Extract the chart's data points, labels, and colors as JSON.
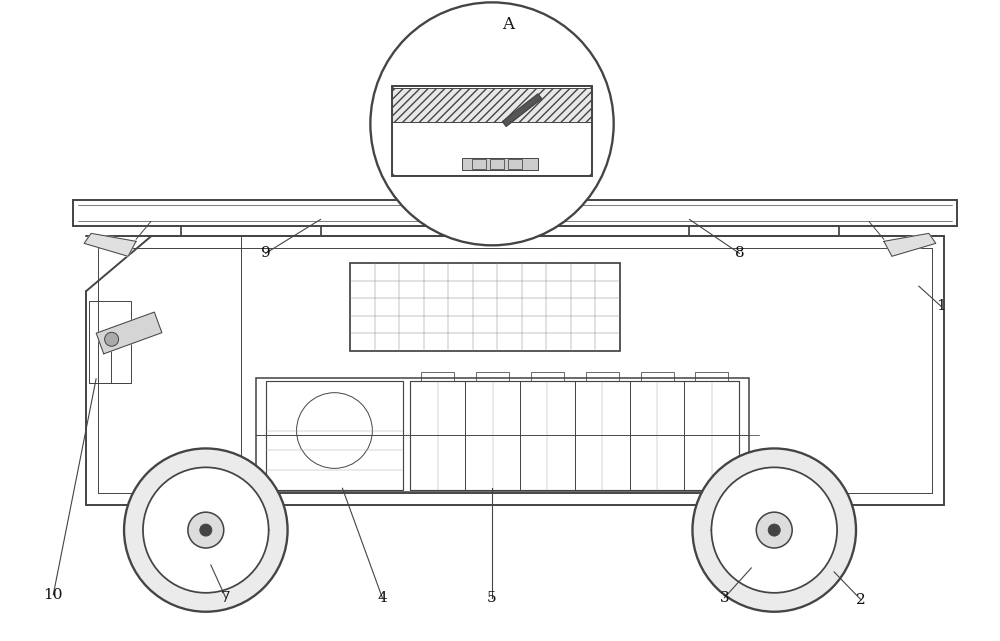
{
  "bg_color": "#ffffff",
  "line_color": "#444444",
  "lw_main": 1.4,
  "lw_thin": 0.7,
  "fig_width": 10.0,
  "fig_height": 6.41
}
